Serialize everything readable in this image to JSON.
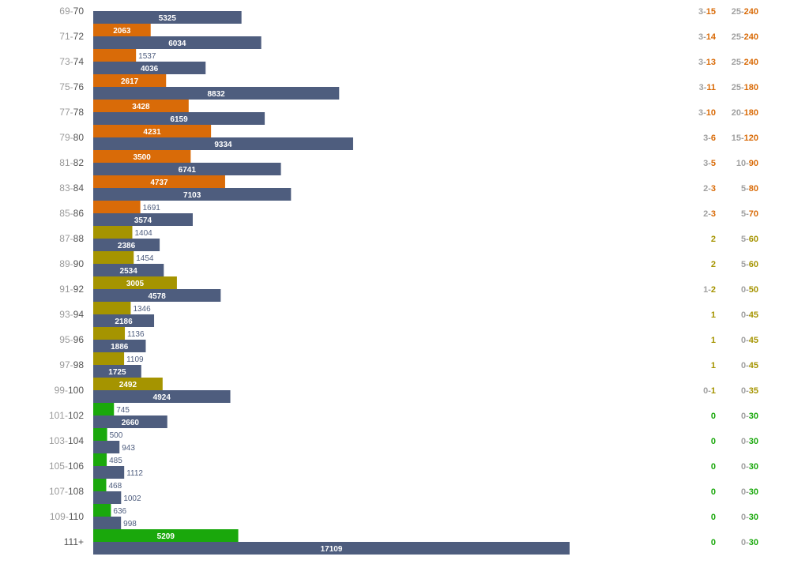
{
  "colors": {
    "orange": "#d96b08",
    "olive": "#a59400",
    "green": "#1aa80c",
    "slate": "#4e5d7e",
    "muted": "#a0a0a0"
  },
  "chart_data": {
    "type": "bar",
    "orientation": "horizontal",
    "categories": [
      {
        "lo": "69",
        "hi": "70"
      },
      {
        "lo": "71",
        "hi": "72"
      },
      {
        "lo": "73",
        "hi": "74"
      },
      {
        "lo": "75",
        "hi": "76"
      },
      {
        "lo": "77",
        "hi": "78"
      },
      {
        "lo": "79",
        "hi": "80"
      },
      {
        "lo": "81",
        "hi": "82"
      },
      {
        "lo": "83",
        "hi": "84"
      },
      {
        "lo": "85",
        "hi": "86"
      },
      {
        "lo": "87",
        "hi": "88"
      },
      {
        "lo": "89",
        "hi": "90"
      },
      {
        "lo": "91",
        "hi": "92"
      },
      {
        "lo": "93",
        "hi": "94"
      },
      {
        "lo": "95",
        "hi": "96"
      },
      {
        "lo": "97",
        "hi": "98"
      },
      {
        "lo": "99",
        "hi": "100"
      },
      {
        "lo": "101",
        "hi": "102"
      },
      {
        "lo": "103",
        "hi": "104"
      },
      {
        "lo": "105",
        "hi": "106"
      },
      {
        "lo": "107",
        "hi": "108"
      },
      {
        "lo": "109",
        "hi": "110"
      },
      {
        "lo": "",
        "hi": "111+"
      }
    ],
    "series": [
      {
        "values": [
          null,
          2063,
          1537,
          2617,
          3428,
          4231,
          3500,
          4737,
          1691,
          1404,
          1454,
          3005,
          1346,
          1136,
          1109,
          2492,
          745,
          500,
          485,
          468,
          636,
          5209
        ]
      },
      {
        "values": [
          5325,
          6034,
          4036,
          8832,
          6159,
          9334,
          6741,
          7103,
          3574,
          2386,
          2534,
          4578,
          2186,
          1886,
          1725,
          4924,
          2660,
          943,
          1112,
          1002,
          998,
          17109
        ]
      }
    ],
    "top_bar_colors": [
      "orange",
      "orange",
      "orange",
      "orange",
      "orange",
      "orange",
      "orange",
      "orange",
      "orange",
      "olive",
      "olive",
      "olive",
      "olive",
      "olive",
      "olive",
      "olive",
      "green",
      "green",
      "green",
      "green",
      "green",
      "green"
    ],
    "column_a": [
      {
        "lo": "3",
        "hi": "15"
      },
      {
        "lo": "3",
        "hi": "14"
      },
      {
        "lo": "3",
        "hi": "13"
      },
      {
        "lo": "3",
        "hi": "11"
      },
      {
        "lo": "3",
        "hi": "10"
      },
      {
        "lo": "3",
        "hi": "6"
      },
      {
        "lo": "3",
        "hi": "5"
      },
      {
        "lo": "2",
        "hi": "3"
      },
      {
        "lo": "2",
        "hi": "3"
      },
      {
        "lo": "",
        "hi": "2"
      },
      {
        "lo": "",
        "hi": "2"
      },
      {
        "lo": "1",
        "hi": "2"
      },
      {
        "lo": "",
        "hi": "1"
      },
      {
        "lo": "",
        "hi": "1"
      },
      {
        "lo": "",
        "hi": "1"
      },
      {
        "lo": "0",
        "hi": "1"
      },
      {
        "lo": "",
        "hi": "0"
      },
      {
        "lo": "",
        "hi": "0"
      },
      {
        "lo": "",
        "hi": "0"
      },
      {
        "lo": "",
        "hi": "0"
      },
      {
        "lo": "",
        "hi": "0"
      },
      {
        "lo": "",
        "hi": "0"
      }
    ],
    "column_b": [
      {
        "lo": "25",
        "hi": "240"
      },
      {
        "lo": "25",
        "hi": "240"
      },
      {
        "lo": "25",
        "hi": "240"
      },
      {
        "lo": "25",
        "hi": "180"
      },
      {
        "lo": "20",
        "hi": "180"
      },
      {
        "lo": "15",
        "hi": "120"
      },
      {
        "lo": "10",
        "hi": "90"
      },
      {
        "lo": "5",
        "hi": "80"
      },
      {
        "lo": "5",
        "hi": "70"
      },
      {
        "lo": "5",
        "hi": "60"
      },
      {
        "lo": "5",
        "hi": "60"
      },
      {
        "lo": "0",
        "hi": "50"
      },
      {
        "lo": "0",
        "hi": "45"
      },
      {
        "lo": "0",
        "hi": "45"
      },
      {
        "lo": "0",
        "hi": "45"
      },
      {
        "lo": "0",
        "hi": "35"
      },
      {
        "lo": "0",
        "hi": "30"
      },
      {
        "lo": "0",
        "hi": "30"
      },
      {
        "lo": "0",
        "hi": "30"
      },
      {
        "lo": "0",
        "hi": "30"
      },
      {
        "lo": "0",
        "hi": "30"
      },
      {
        "lo": "0",
        "hi": "30"
      }
    ],
    "xlim": [
      0,
      17109
    ],
    "grid": false,
    "legend": "none"
  }
}
